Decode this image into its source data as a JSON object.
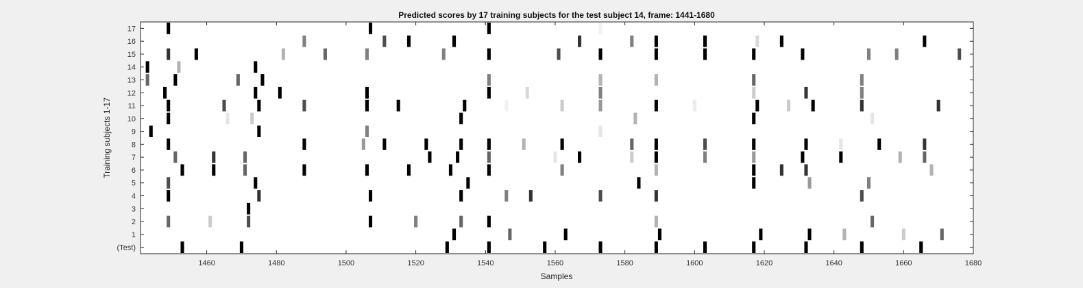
{
  "chart_data": {
    "type": "heatmap",
    "title": "Predicted scores by 17 training subjects for the test subject 14, frame: 1441-1680",
    "xlabel": "Samples",
    "ylabel": "Training subjects 1-17",
    "xlim": [
      1441,
      1680
    ],
    "xticks": [
      1460,
      1480,
      1500,
      1520,
      1540,
      1560,
      1580,
      1600,
      1620,
      1640,
      1660,
      1680
    ],
    "ytick_labels": [
      "(Test)",
      "1",
      "2",
      "3",
      "4",
      "5",
      "6",
      "7",
      "8",
      "9",
      "10",
      "11",
      "12",
      "13",
      "14",
      "15",
      "16",
      "17"
    ],
    "colormap": "gray (1 = black, 0 = white)",
    "grid": false,
    "rows": [
      {
        "label": "17",
        "marks": [
          [
            1449,
            1.0
          ],
          [
            1507,
            1.0
          ],
          [
            1541,
            1.0
          ],
          [
            1573,
            0.05
          ]
        ]
      },
      {
        "label": "16",
        "marks": [
          [
            1488,
            0.5
          ],
          [
            1511,
            0.7
          ],
          [
            1518,
            1.0
          ],
          [
            1531,
            1.0
          ],
          [
            1567,
            0.8
          ],
          [
            1582,
            0.5
          ],
          [
            1589,
            1.0
          ],
          [
            1603,
            1.0
          ],
          [
            1618,
            0.15
          ],
          [
            1625,
            1.0
          ],
          [
            1666,
            1.0
          ]
        ]
      },
      {
        "label": "15",
        "marks": [
          [
            1449,
            0.8
          ],
          [
            1457,
            1.0
          ],
          [
            1482,
            0.3
          ],
          [
            1494,
            0.6
          ],
          [
            1506,
            0.5
          ],
          [
            1528,
            0.5
          ],
          [
            1541,
            1.0
          ],
          [
            1561,
            0.7
          ],
          [
            1573,
            1.0
          ],
          [
            1589,
            1.0
          ],
          [
            1603,
            1.0
          ],
          [
            1617,
            1.0
          ],
          [
            1631,
            1.0
          ],
          [
            1650,
            0.5
          ],
          [
            1658,
            0.5
          ],
          [
            1676,
            0.7
          ]
        ]
      },
      {
        "label": "14",
        "marks": [
          [
            1443,
            1.0
          ],
          [
            1452,
            0.3
          ],
          [
            1474,
            1.0
          ]
        ]
      },
      {
        "label": "13",
        "marks": [
          [
            1443,
            0.6
          ],
          [
            1451,
            1.0
          ],
          [
            1469,
            0.6
          ],
          [
            1476,
            1.0
          ],
          [
            1541,
            0.5
          ],
          [
            1573,
            0.3
          ],
          [
            1589,
            0.3
          ],
          [
            1617,
            0.6
          ],
          [
            1648,
            0.5
          ]
        ]
      },
      {
        "label": "12",
        "marks": [
          [
            1448,
            1.0
          ],
          [
            1474,
            1.0
          ],
          [
            1481,
            1.0
          ],
          [
            1506,
            1.0
          ],
          [
            1541,
            1.0
          ],
          [
            1552,
            0.15
          ],
          [
            1573,
            0.5
          ],
          [
            1617,
            0.2
          ],
          [
            1632,
            0.8
          ],
          [
            1648,
            0.5
          ]
        ]
      },
      {
        "label": "11",
        "marks": [
          [
            1449,
            1.0
          ],
          [
            1465,
            0.7
          ],
          [
            1475,
            1.0
          ],
          [
            1488,
            0.7
          ],
          [
            1506,
            1.0
          ],
          [
            1515,
            1.0
          ],
          [
            1534,
            1.0
          ],
          [
            1546,
            0.05
          ],
          [
            1562,
            0.2
          ],
          [
            1573,
            0.4
          ],
          [
            1589,
            1.0
          ],
          [
            1600,
            0.08
          ],
          [
            1618,
            1.0
          ],
          [
            1627,
            0.2
          ],
          [
            1634,
            1.0
          ],
          [
            1648,
            0.8
          ],
          [
            1670,
            0.8
          ]
        ]
      },
      {
        "label": "10",
        "marks": [
          [
            1449,
            1.0
          ],
          [
            1466,
            0.1
          ],
          [
            1473,
            0.2
          ],
          [
            1533,
            1.0
          ],
          [
            1583,
            0.3
          ],
          [
            1617,
            1.0
          ],
          [
            1651,
            0.1
          ]
        ]
      },
      {
        "label": "9",
        "marks": [
          [
            1444,
            1.0
          ],
          [
            1475,
            1.0
          ],
          [
            1506,
            0.5
          ],
          [
            1573,
            0.1
          ]
        ]
      },
      {
        "label": "8",
        "marks": [
          [
            1449,
            1.0
          ],
          [
            1488,
            1.0
          ],
          [
            1505,
            0.4
          ],
          [
            1511,
            1.0
          ],
          [
            1523,
            1.0
          ],
          [
            1533,
            1.0
          ],
          [
            1541,
            1.0
          ],
          [
            1551,
            0.3
          ],
          [
            1562,
            1.0
          ],
          [
            1582,
            0.6
          ],
          [
            1589,
            1.0
          ],
          [
            1603,
            0.7
          ],
          [
            1617,
            1.0
          ],
          [
            1632,
            1.0
          ],
          [
            1642,
            0.1
          ],
          [
            1653,
            1.0
          ],
          [
            1666,
            0.8
          ]
        ]
      },
      {
        "label": "7",
        "marks": [
          [
            1451,
            0.6
          ],
          [
            1462,
            0.8
          ],
          [
            1471,
            0.6
          ],
          [
            1524,
            1.0
          ],
          [
            1532,
            1.0
          ],
          [
            1541,
            0.6
          ],
          [
            1560,
            0.1
          ],
          [
            1567,
            1.0
          ],
          [
            1582,
            0.2
          ],
          [
            1589,
            1.0
          ],
          [
            1603,
            0.5
          ],
          [
            1617,
            0.4
          ],
          [
            1631,
            1.0
          ],
          [
            1642,
            1.0
          ],
          [
            1659,
            0.3
          ],
          [
            1666,
            0.6
          ]
        ]
      },
      {
        "label": "6",
        "marks": [
          [
            1453,
            1.0
          ],
          [
            1462,
            1.0
          ],
          [
            1471,
            0.6
          ],
          [
            1488,
            1.0
          ],
          [
            1506,
            1.0
          ],
          [
            1518,
            1.0
          ],
          [
            1530,
            1.0
          ],
          [
            1541,
            1.0
          ],
          [
            1562,
            0.5
          ],
          [
            1589,
            0.3
          ],
          [
            1617,
            1.0
          ],
          [
            1625,
            0.8
          ],
          [
            1632,
            0.8
          ],
          [
            1668,
            0.3
          ]
        ]
      },
      {
        "label": "5",
        "marks": [
          [
            1449,
            0.7
          ],
          [
            1474,
            1.0
          ],
          [
            1535,
            1.0
          ],
          [
            1584,
            1.0
          ],
          [
            1617,
            1.0
          ],
          [
            1633,
            0.4
          ],
          [
            1650,
            0.5
          ]
        ]
      },
      {
        "label": "4",
        "marks": [
          [
            1449,
            1.0
          ],
          [
            1475,
            0.8
          ],
          [
            1507,
            1.0
          ],
          [
            1533,
            1.0
          ],
          [
            1546,
            0.5
          ],
          [
            1553,
            0.8
          ],
          [
            1573,
            0.7
          ],
          [
            1589,
            0.8
          ],
          [
            1648,
            0.7
          ]
        ]
      },
      {
        "label": "3",
        "marks": [
          [
            1472,
            1.0
          ]
        ]
      },
      {
        "label": "2",
        "marks": [
          [
            1449,
            0.6
          ],
          [
            1461,
            0.2
          ],
          [
            1472,
            0.7
          ],
          [
            1507,
            1.0
          ],
          [
            1520,
            0.5
          ],
          [
            1533,
            0.6
          ],
          [
            1541,
            1.0
          ],
          [
            1589,
            0.3
          ],
          [
            1651,
            0.6
          ]
        ]
      },
      {
        "label": "1",
        "marks": [
          [
            1531,
            1.0
          ],
          [
            1547,
            0.6
          ],
          [
            1563,
            1.0
          ],
          [
            1590,
            1.0
          ],
          [
            1619,
            1.0
          ],
          [
            1633,
            1.0
          ],
          [
            1643,
            0.3
          ],
          [
            1660,
            0.2
          ],
          [
            1671,
            0.6
          ]
        ]
      },
      {
        "label": "(Test)",
        "marks": [
          [
            1453,
            1.0
          ],
          [
            1470,
            1.0
          ],
          [
            1529,
            1.0
          ],
          [
            1541,
            1.0
          ],
          [
            1557,
            1.0
          ],
          [
            1573,
            1.0
          ],
          [
            1589,
            1.0
          ],
          [
            1603,
            1.0
          ],
          [
            1617,
            1.0
          ],
          [
            1632,
            1.0
          ],
          [
            1648,
            1.0
          ],
          [
            1665,
            1.0
          ]
        ]
      }
    ]
  }
}
